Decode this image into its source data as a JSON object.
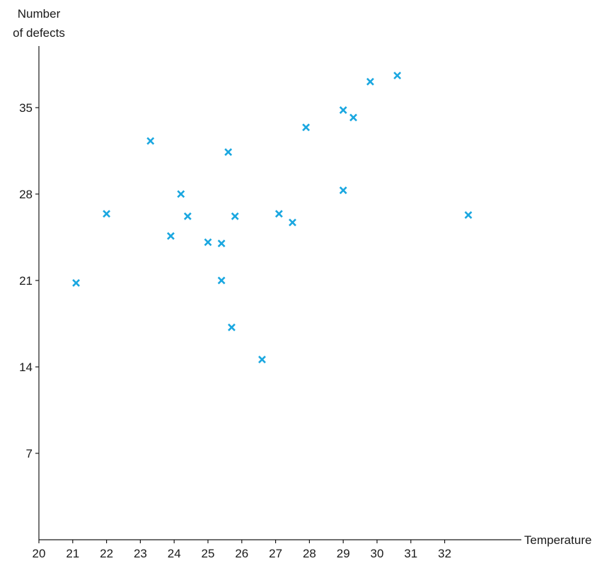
{
  "chart_data": {
    "type": "scatter",
    "ylabel_line1": "Number",
    "ylabel_line2": "of defects",
    "xlabel": "Temperature",
    "xlim": [
      20,
      33.5
    ],
    "ylim": [
      0,
      40
    ],
    "xticks": [
      20,
      21,
      22,
      23,
      24,
      25,
      26,
      27,
      28,
      29,
      30,
      31,
      32
    ],
    "yticks": [
      7,
      14,
      21,
      28,
      35
    ],
    "marker": "x",
    "marker_color": "#1aa7e0",
    "points": [
      {
        "x": 21.1,
        "y": 20.8
      },
      {
        "x": 22.0,
        "y": 26.4
      },
      {
        "x": 23.3,
        "y": 32.3
      },
      {
        "x": 23.9,
        "y": 24.6
      },
      {
        "x": 24.2,
        "y": 28.0
      },
      {
        "x": 24.4,
        "y": 26.2
      },
      {
        "x": 25.0,
        "y": 24.1
      },
      {
        "x": 25.4,
        "y": 24.0
      },
      {
        "x": 25.4,
        "y": 21.0
      },
      {
        "x": 25.6,
        "y": 31.4
      },
      {
        "x": 25.7,
        "y": 17.2
      },
      {
        "x": 25.8,
        "y": 26.2
      },
      {
        "x": 26.6,
        "y": 14.6
      },
      {
        "x": 27.1,
        "y": 26.4
      },
      {
        "x": 27.5,
        "y": 25.7
      },
      {
        "x": 27.9,
        "y": 33.4
      },
      {
        "x": 29.0,
        "y": 28.3
      },
      {
        "x": 29.0,
        "y": 34.8
      },
      {
        "x": 29.3,
        "y": 34.2
      },
      {
        "x": 29.8,
        "y": 37.1
      },
      {
        "x": 30.6,
        "y": 37.6
      },
      {
        "x": 32.7,
        "y": 26.3
      }
    ]
  }
}
